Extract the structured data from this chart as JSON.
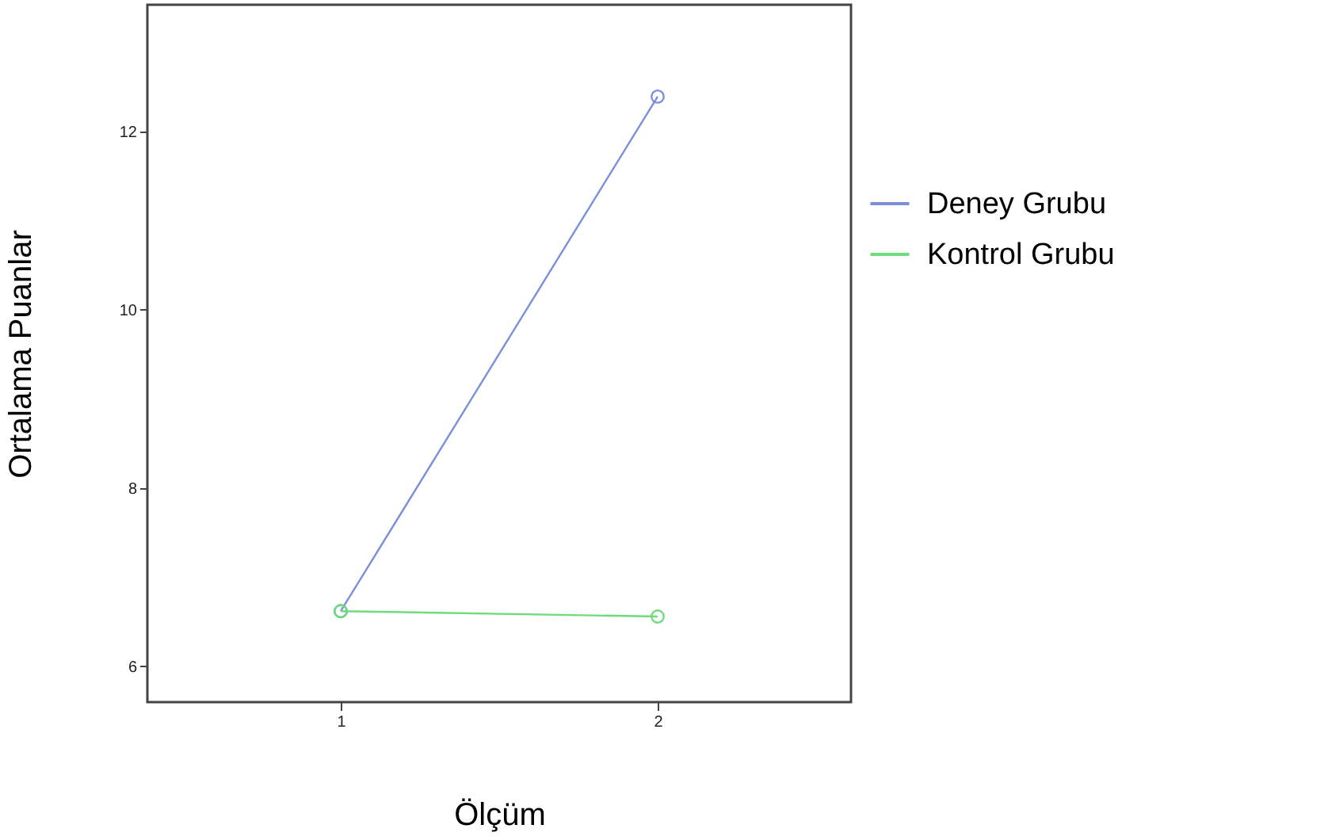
{
  "chart_data": {
    "type": "line",
    "xlabel": "Ölçüm",
    "ylabel": "Ortalama Puanlar",
    "x": [
      1,
      2
    ],
    "series": [
      {
        "name": "Deney Grubu",
        "color": "#7b8fdc",
        "values": [
          6.62,
          12.39
        ]
      },
      {
        "name": "Kontrol Grubu",
        "color": "#6fdc7b",
        "values": [
          6.62,
          6.56
        ]
      }
    ],
    "xlim": [
      0.39,
      2.61
    ],
    "xticks": [
      1,
      2
    ],
    "ylim": [
      5.6,
      13.42
    ],
    "yticks": [
      6,
      8,
      10,
      12
    ],
    "grid": false,
    "legend": "right",
    "marker": "circle",
    "line_style": "solid"
  }
}
